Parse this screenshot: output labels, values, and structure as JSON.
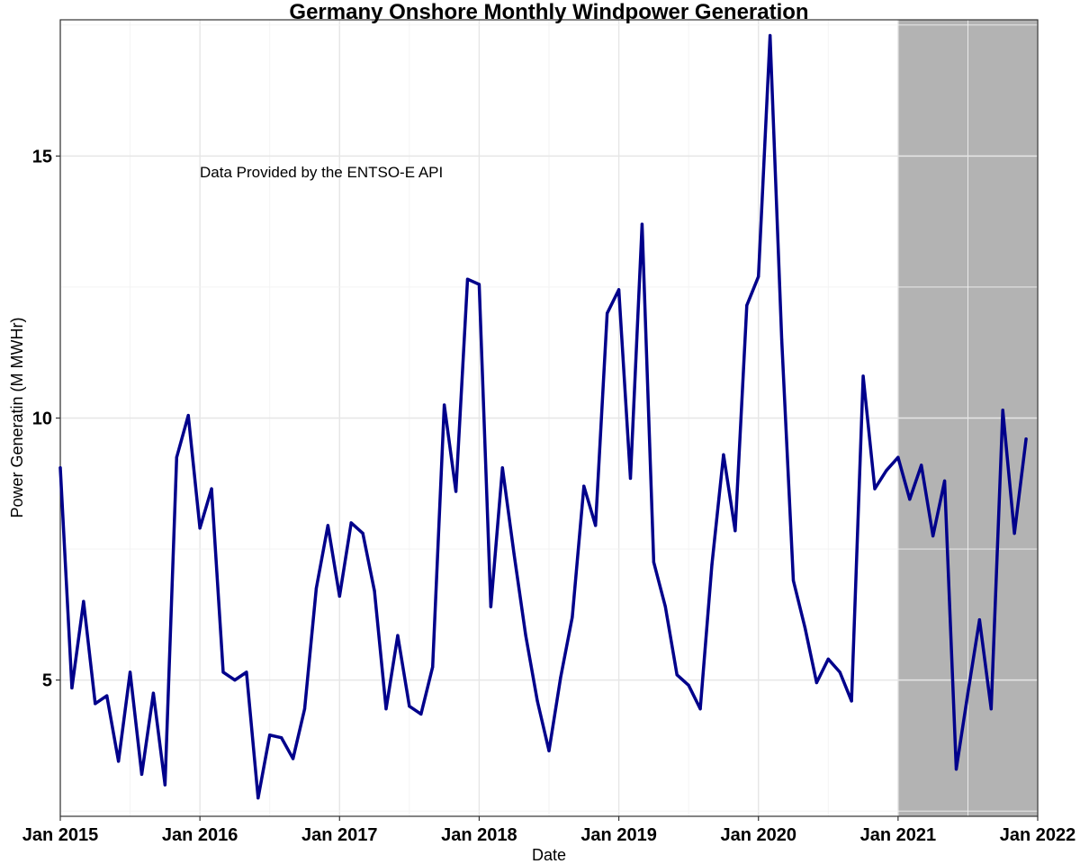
{
  "chart_data": {
    "type": "line",
    "title": "Germany Onshore Monthly Windpower Generation",
    "xlabel": "Date",
    "ylabel": "Power Generatin (M MWHr)",
    "annotation": "Data Provided by the ENTSO-E API",
    "xlim": [
      "2015-01",
      "2022-01"
    ],
    "ylim": [
      2.4,
      17.6
    ],
    "x_ticks": [
      "Jan 2015",
      "Jan 2016",
      "Jan 2017",
      "Jan 2018",
      "Jan 2019",
      "Jan 2020",
      "Jan 2021",
      "Jan 2022"
    ],
    "y_ticks": [
      5,
      10,
      15
    ],
    "grid": true,
    "line_color": "#00008b",
    "shaded_region": {
      "start": "2021-01",
      "end": "2022-01",
      "color": "#b3b3b3"
    },
    "x": [
      "2015-01",
      "2015-02",
      "2015-03",
      "2015-04",
      "2015-05",
      "2015-06",
      "2015-07",
      "2015-08",
      "2015-09",
      "2015-10",
      "2015-11",
      "2015-12",
      "2016-01",
      "2016-02",
      "2016-03",
      "2016-04",
      "2016-05",
      "2016-06",
      "2016-07",
      "2016-08",
      "2016-09",
      "2016-10",
      "2016-11",
      "2016-12",
      "2017-01",
      "2017-02",
      "2017-03",
      "2017-04",
      "2017-05",
      "2017-06",
      "2017-07",
      "2017-08",
      "2017-09",
      "2017-10",
      "2017-11",
      "2017-12",
      "2018-01",
      "2018-02",
      "2018-03",
      "2018-04",
      "2018-05",
      "2018-06",
      "2018-07",
      "2018-08",
      "2018-09",
      "2018-10",
      "2018-11",
      "2018-12",
      "2019-01",
      "2019-02",
      "2019-03",
      "2019-04",
      "2019-05",
      "2019-06",
      "2019-07",
      "2019-08",
      "2019-09",
      "2019-10",
      "2019-11",
      "2019-12",
      "2020-01",
      "2020-02",
      "2020-03",
      "2020-04",
      "2020-05",
      "2020-06",
      "2020-07",
      "2020-08",
      "2020-09",
      "2020-10",
      "2020-11",
      "2020-12",
      "2021-01",
      "2021-02",
      "2021-03",
      "2021-04",
      "2021-05",
      "2021-06",
      "2021-07",
      "2021-08",
      "2021-09",
      "2021-10",
      "2021-11",
      "2021-12"
    ],
    "values": [
      9.05,
      4.85,
      6.5,
      4.55,
      4.7,
      3.45,
      5.15,
      3.2,
      4.75,
      3.0,
      9.25,
      10.05,
      7.9,
      8.65,
      5.15,
      5.0,
      5.15,
      2.75,
      3.95,
      3.9,
      3.5,
      4.45,
      6.75,
      7.95,
      6.6,
      8.0,
      7.8,
      6.7,
      4.45,
      5.85,
      4.5,
      4.35,
      5.25,
      10.25,
      8.6,
      12.65,
      12.55,
      6.4,
      9.05,
      7.4,
      5.85,
      4.6,
      3.65,
      5.05,
      6.2,
      8.7,
      7.95,
      12.0,
      12.45,
      8.85,
      13.7,
      7.25,
      6.4,
      5.1,
      4.9,
      4.45,
      7.2,
      9.3,
      7.85,
      12.15,
      12.7,
      17.3,
      11.5,
      6.9,
      6.0,
      4.95,
      5.4,
      5.15,
      4.6,
      10.8,
      8.65,
      9.0,
      9.25,
      8.45,
      9.1,
      7.75,
      8.8,
      3.3,
      4.75,
      6.15,
      4.45,
      10.15,
      7.8,
      9.6
    ]
  }
}
